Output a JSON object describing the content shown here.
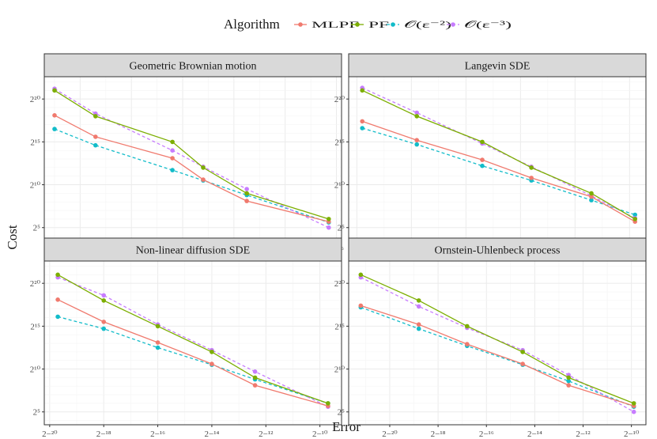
{
  "legend": {
    "title": "Algorithm",
    "items": [
      {
        "label": "MLPF",
        "color": "#F07A6E",
        "dashed": false
      },
      {
        "label": "PF",
        "color": "#7CAE00",
        "dashed": false
      },
      {
        "label": "𝒪(ε⁻²)",
        "color": "#12BCC9",
        "dashed": true
      },
      {
        "label": "𝒪(ε⁻³)",
        "color": "#C77CFF",
        "dashed": true
      }
    ]
  },
  "axes": {
    "xlabel": "Error",
    "ylabel": "Cost"
  },
  "chart_data": [
    {
      "type": "line",
      "title": "Geometric Brownian motion",
      "x_scale": "log2",
      "y_scale": "log2",
      "xlim_log2": [
        -27.4,
        -15.8
      ],
      "ylim_log2": [
        3.5,
        22.6
      ],
      "x_ticks": [
        -26,
        -24,
        -22,
        -20,
        -18,
        -16
      ],
      "y_ticks": [
        5,
        10,
        15,
        20
      ],
      "x_log2": [
        -27,
        -25.4,
        -22.4,
        -21.2,
        -19.5,
        -16.3
      ],
      "series": [
        {
          "name": "MLPF",
          "y_log2": [
            18.1,
            15.6,
            13.1,
            10.6,
            8.1,
            5.7
          ]
        },
        {
          "name": "PF",
          "y_log2": [
            21,
            18,
            15,
            12,
            9,
            6
          ]
        },
        {
          "name": "𝒪(ε⁻²)",
          "y_log2": [
            16.5,
            14.6,
            11.7,
            10.5,
            8.8,
            5.6
          ]
        },
        {
          "name": "𝒪(ε⁻³)",
          "y_log2": [
            21.2,
            18.3,
            14,
            12.1,
            9.5,
            5
          ]
        }
      ]
    },
    {
      "type": "line",
      "title": "Langevin SDE",
      "x_scale": "log2",
      "y_scale": "log2",
      "xlim_log2": [
        -16.3,
        -5.4
      ],
      "ylim_log2": [
        3.5,
        22.6
      ],
      "x_ticks": [
        -16,
        -14,
        -12,
        -10,
        -8,
        -6
      ],
      "y_ticks": [
        5,
        10,
        15,
        20
      ],
      "x_log2": [
        -15.8,
        -13.8,
        -11.4,
        -9.6,
        -7.4,
        -5.8
      ],
      "series": [
        {
          "name": "MLPF",
          "y_log2": [
            17.4,
            15.2,
            12.9,
            10.8,
            8.6,
            5.7
          ]
        },
        {
          "name": "PF",
          "y_log2": [
            21,
            18,
            15,
            12,
            9,
            6
          ]
        },
        {
          "name": "𝒪(ε⁻²)",
          "y_log2": [
            16.6,
            14.7,
            12.2,
            10.5,
            8.2,
            6.5
          ]
        },
        {
          "name": "𝒪(ε⁻³)",
          "y_log2": [
            21.3,
            18.4,
            14.8,
            12.1,
            8.7,
            6.1
          ]
        }
      ]
    },
    {
      "type": "line",
      "title": "Non-linear diffusion SDE",
      "x_scale": "log2",
      "y_scale": "log2",
      "xlim_log2": [
        -20.2,
        -9.2
      ],
      "ylim_log2": [
        3.5,
        22.6
      ],
      "x_ticks": [
        -20,
        -18,
        -16,
        -14,
        -12,
        -10
      ],
      "y_ticks": [
        5,
        10,
        15,
        20
      ],
      "x_log2": [
        -19.7,
        -18,
        -16,
        -14,
        -12.4,
        -9.7
      ],
      "series": [
        {
          "name": "MLPF",
          "y_log2": [
            18.1,
            15.5,
            13.1,
            10.6,
            8.1,
            5.7
          ]
        },
        {
          "name": "PF",
          "y_log2": [
            21,
            18,
            15,
            12,
            9,
            6
          ]
        },
        {
          "name": "𝒪(ε⁻²)",
          "y_log2": [
            16.1,
            14.7,
            12.5,
            10.5,
            8.8,
            6
          ]
        },
        {
          "name": "𝒪(ε⁻³)",
          "y_log2": [
            20.7,
            18.6,
            15.2,
            12.2,
            9.7,
            5.6
          ]
        }
      ]
    },
    {
      "type": "line",
      "title": "Ornstein-Uhlenbeck process",
      "x_scale": "log2",
      "y_scale": "log2",
      "xlim_log2": [
        -21.7,
        -9.4
      ],
      "ylim_log2": [
        3.5,
        22.6
      ],
      "x_ticks": [
        -20,
        -18,
        -16,
        -14,
        -12,
        -10
      ],
      "y_ticks": [
        5,
        10,
        15,
        20
      ],
      "x_log2": [
        -21.2,
        -18.8,
        -16.8,
        -14.5,
        -12.6,
        -9.9
      ],
      "series": [
        {
          "name": "MLPF",
          "y_log2": [
            17.4,
            15.2,
            12.9,
            10.6,
            8.1,
            5.7
          ]
        },
        {
          "name": "PF",
          "y_log2": [
            21,
            18,
            15,
            12,
            9,
            6
          ]
        },
        {
          "name": "𝒪(ε⁻²)",
          "y_log2": [
            17.2,
            14.7,
            12.7,
            10.5,
            8.6,
            5.6
          ]
        },
        {
          "name": "𝒪(ε⁻³)",
          "y_log2": [
            20.7,
            17.3,
            14.8,
            12.2,
            9.3,
            5
          ]
        }
      ]
    }
  ]
}
